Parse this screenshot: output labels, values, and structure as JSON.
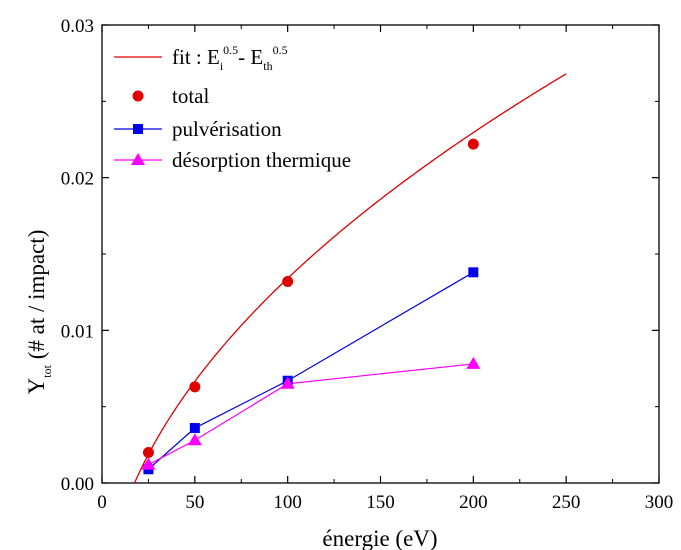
{
  "chart_data": {
    "type": "line",
    "xlabel": "énergie (eV)",
    "ylabel_main": "Y",
    "ylabel_sub": "tot",
    "ylabel_rest": " (# at / impact)",
    "xlim": [
      0,
      300
    ],
    "ylim": [
      0,
      0.03
    ],
    "x_ticks": [
      0,
      50,
      100,
      150,
      200,
      250,
      300
    ],
    "x_tick_labels": [
      "0",
      "50",
      "100",
      "150",
      "200",
      "250",
      "300"
    ],
    "y_ticks": [
      0,
      0.01,
      0.02,
      0.03
    ],
    "y_tick_labels": [
      "0.00",
      "0.01",
      "0.02",
      "0.03"
    ],
    "grid": false,
    "legend_position": "top-left",
    "fit": {
      "label_prefix": "fit : E",
      "label_sub1": "i",
      "label_sup1": "0.5",
      "label_mid": "- E",
      "label_sub2": "th",
      "label_sup2": "0.5",
      "color": "#e00000",
      "x_start": 17.5,
      "x_end": 250,
      "coefficient": 0.002305,
      "e_threshold": 17.5
    },
    "series": [
      {
        "name": "total",
        "color": "#e00000",
        "marker": "circle",
        "line": false,
        "x": [
          25,
          50,
          100,
          200
        ],
        "y": [
          0.002,
          0.0063,
          0.0132,
          0.0222
        ]
      },
      {
        "name": "pulvérisation",
        "color": "#0000ee",
        "marker": "square",
        "line": true,
        "x": [
          25,
          50,
          100,
          200
        ],
        "y": [
          0.0009,
          0.0036,
          0.0067,
          0.0138
        ]
      },
      {
        "name": "désorption thermique",
        "color": "#ff00ff",
        "marker": "triangle",
        "line": true,
        "x": [
          25,
          50,
          100,
          200
        ],
        "y": [
          0.0012,
          0.0028,
          0.0065,
          0.0078
        ]
      }
    ]
  }
}
